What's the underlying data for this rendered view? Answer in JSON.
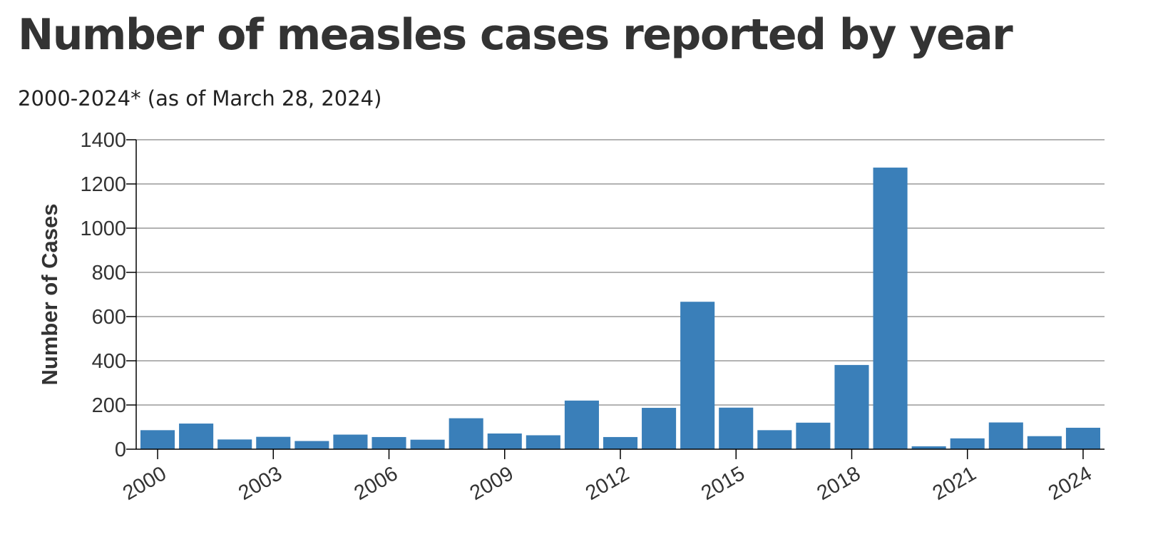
{
  "title": "Number of measles cases reported by year",
  "subtitle": "2000-2024* (as of March 28, 2024)",
  "chart_data": {
    "type": "bar",
    "categories": [
      "2000",
      "2001",
      "2002",
      "2003",
      "2004",
      "2005",
      "2006",
      "2007",
      "2008",
      "2009",
      "2010",
      "2011",
      "2012",
      "2013",
      "2014",
      "2015",
      "2016",
      "2017",
      "2018",
      "2019",
      "2020",
      "2021",
      "2022",
      "2023",
      "2024"
    ],
    "series": [
      {
        "values": [
          86,
          116,
          44,
          56,
          37,
          66,
          55,
          43,
          140,
          71,
          63,
          220,
          55,
          187,
          667,
          188,
          86,
          120,
          381,
          1274,
          13,
          49,
          121,
          59,
          97
        ]
      }
    ],
    "x_tick_labels": [
      "2000",
      "2003",
      "2006",
      "2009",
      "2012",
      "2015",
      "2018",
      "2021",
      "2024"
    ],
    "y_ticks": [
      0,
      200,
      400,
      600,
      800,
      1000,
      1200,
      1400
    ],
    "xlabel": "",
    "ylabel": "Number of Cases",
    "ylim": [
      0,
      1400
    ],
    "grid": true,
    "bar_color": "#3a7fb9",
    "grid_color": "#999999"
  }
}
